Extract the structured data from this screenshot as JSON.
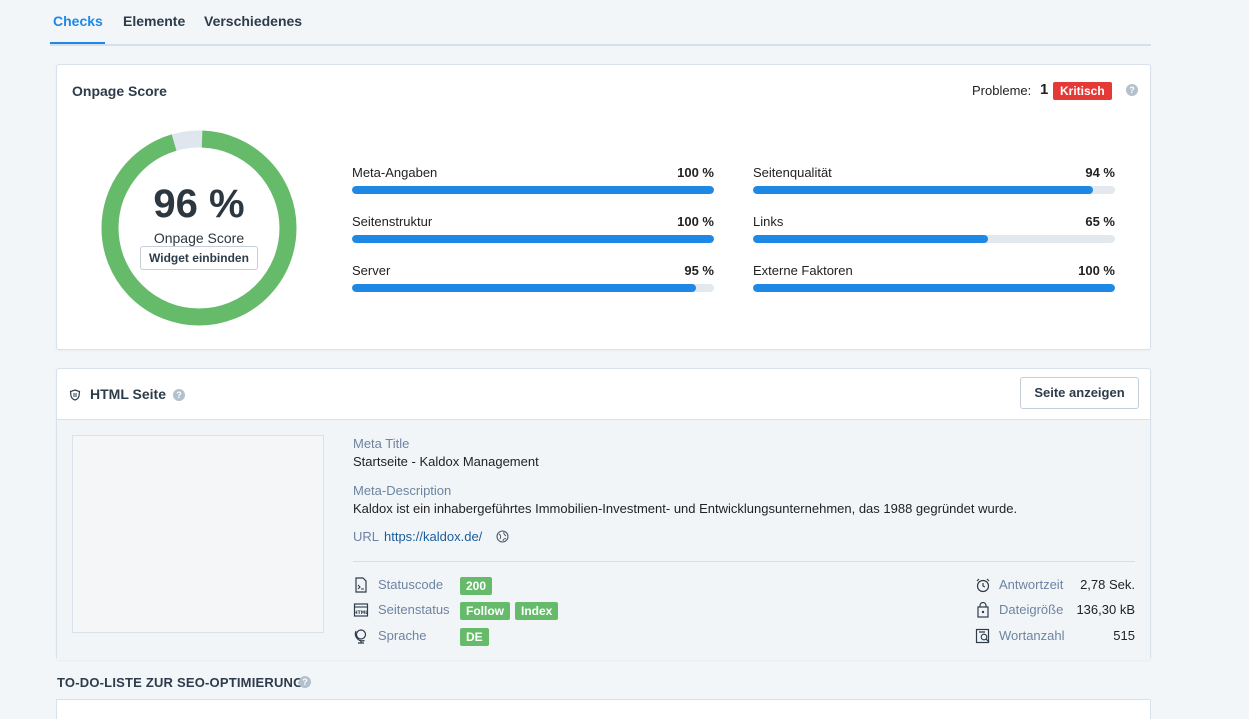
{
  "tabs": [
    {
      "label": "Checks"
    },
    {
      "label": "Elemente"
    },
    {
      "label": "Verschiedenes"
    }
  ],
  "onpage": {
    "title": "Onpage Score",
    "problems_label": "Probleme:",
    "problems_count": "1",
    "critical_badge": "Kritisch",
    "score_pct": "96 %",
    "score_value": 0.96,
    "score_label": "Onpage Score",
    "widget_button": "Widget einbinden",
    "metrics": [
      {
        "label": "Meta-Angaben",
        "value": "100 %",
        "fraction": 1.0
      },
      {
        "label": "Seitenstruktur",
        "value": "100 %",
        "fraction": 1.0
      },
      {
        "label": "Server",
        "value": "95 %",
        "fraction": 0.95
      },
      {
        "label": "Seitenqualität",
        "value": "94 %",
        "fraction": 0.94
      },
      {
        "label": "Links",
        "value": "65 %",
        "fraction": 0.65
      },
      {
        "label": "Externe Faktoren",
        "value": "100 %",
        "fraction": 1.0
      }
    ]
  },
  "html_page": {
    "title": "HTML Seite",
    "view_button": "Seite anzeigen",
    "meta_title_label": "Meta Title",
    "meta_title_value": "Startseite - Kaldox Management",
    "meta_desc_label": "Meta-Description",
    "meta_desc_value": "Kaldox ist ein inhabergeführtes Immobilien-Investment- und Entwicklungsunternehmen, das 1988 gegründet wurde.",
    "url_label": "URL",
    "url_value": "https://kaldox.de/",
    "status_code_label": "Statuscode",
    "status_code_value": "200",
    "page_status_label": "Seitenstatus",
    "page_status_follow": "Follow",
    "page_status_index": "Index",
    "language_label": "Sprache",
    "language_value": "DE",
    "response_time_label": "Antwortzeit",
    "response_time_value": "2,78 Sek.",
    "file_size_label": "Dateigröße",
    "file_size_value": "136,30 kB",
    "word_count_label": "Wortanzahl",
    "word_count_value": "515"
  },
  "todo": {
    "title": "TO-DO-LISTE ZUR SEO-OPTIMIERUNG"
  },
  "colors": {
    "accent": "#1e88e5",
    "donut_green": "#66bb6a",
    "donut_track": "#dfe6ee",
    "critical": "#e53935",
    "badge_green": "#66bb6a"
  }
}
